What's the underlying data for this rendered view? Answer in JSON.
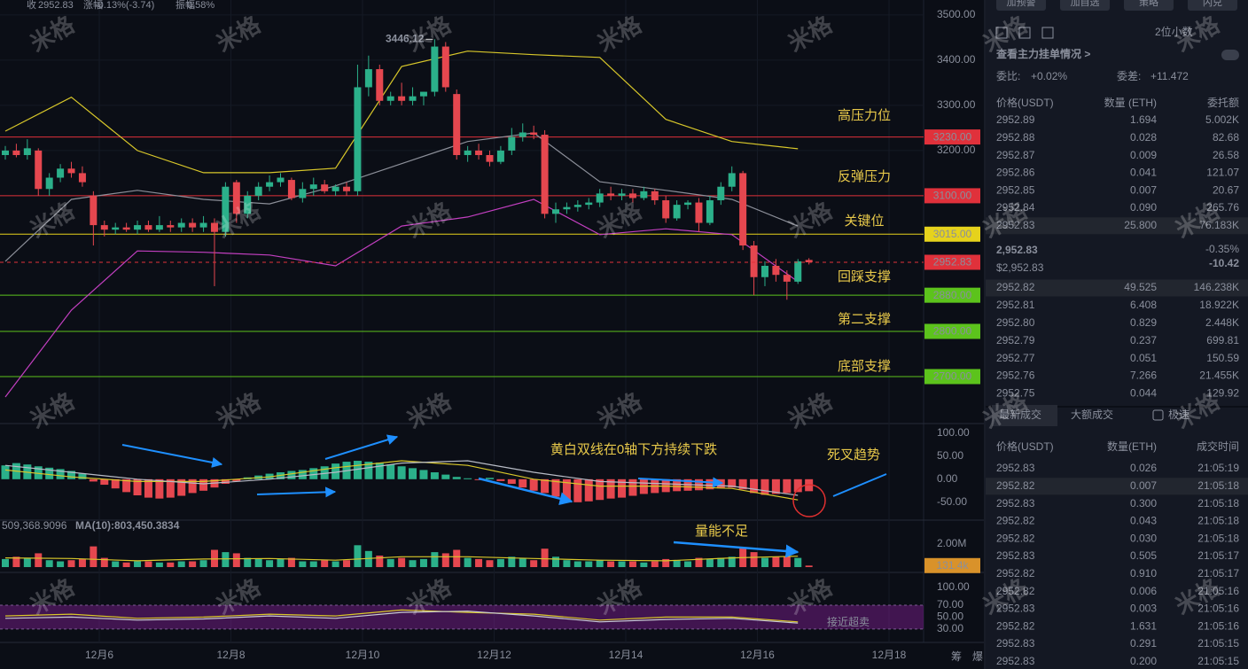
{
  "header": {
    "items": [
      {
        "label": "收",
        "value": "2952.83"
      },
      {
        "label": "涨幅",
        "value": "-0.13%(-3.74)"
      },
      {
        "label": "振幅",
        "value": "0.58%"
      }
    ],
    "buttons": [
      "加预警",
      "加自选",
      "策略",
      "闪兑"
    ]
  },
  "watermark": "米格",
  "chart": {
    "type": "candlestick",
    "colors": {
      "up": "#2bb08a",
      "down": "#e5474f"
    },
    "dates": [
      "12月6",
      "12月8",
      "12月10",
      "12月12",
      "12月14",
      "12月16",
      "12月18"
    ],
    "axis_extra": [
      "筹",
      "爆"
    ],
    "price": {
      "ylim": [
        2602,
        3533
      ],
      "yticks": [
        {
          "value": 3500,
          "label": "3500.00"
        },
        {
          "value": 3400,
          "label": "3400.00"
        },
        {
          "value": 3300,
          "label": "3300.00"
        },
        {
          "value": 3200,
          "label": "3200.00"
        }
      ],
      "candles": [
        [
          3190,
          3210,
          3180,
          3200
        ],
        [
          3200,
          3215,
          3185,
          3190
        ],
        [
          3190,
          3225,
          3180,
          3205
        ],
        [
          3200,
          3205,
          3100,
          3115
        ],
        [
          3115,
          3150,
          3100,
          3140
        ],
        [
          3140,
          3170,
          3130,
          3160
        ],
        [
          3160,
          3175,
          3140,
          3150
        ],
        [
          3150,
          3165,
          3120,
          3130
        ],
        [
          3100,
          3110,
          2990,
          3035
        ],
        [
          3035,
          3045,
          3010,
          3025
        ],
        [
          3025,
          3040,
          3015,
          3030
        ],
        [
          3030,
          3040,
          3020,
          3025
        ],
        [
          3025,
          3045,
          3015,
          3035
        ],
        [
          3035,
          3045,
          3020,
          3025
        ],
        [
          3025,
          3055,
          3020,
          3035
        ],
        [
          3035,
          3045,
          3020,
          3030
        ],
        [
          3030,
          3050,
          3020,
          3040
        ],
        [
          3040,
          3050,
          3020,
          3030
        ],
        [
          3030,
          3055,
          3020,
          3040
        ],
        [
          3040,
          3050,
          2900,
          3020
        ],
        [
          3020,
          3130,
          3010,
          3120
        ],
        [
          3130,
          3135,
          3040,
          3060
        ],
        [
          3060,
          3110,
          3050,
          3100
        ],
        [
          3100,
          3130,
          3090,
          3120
        ],
        [
          3120,
          3145,
          3110,
          3130
        ],
        [
          3130,
          3150,
          3120,
          3140
        ],
        [
          3135,
          3140,
          3090,
          3095
        ],
        [
          3095,
          3130,
          3085,
          3115
        ],
        [
          3115,
          3140,
          3100,
          3125
        ],
        [
          3125,
          3135,
          3105,
          3110
        ],
        [
          3110,
          3125,
          3100,
          3120
        ],
        [
          3120,
          3130,
          3100,
          3110
        ],
        [
          3110,
          3390,
          3100,
          3340
        ],
        [
          3340,
          3410,
          3320,
          3380
        ],
        [
          3380,
          3390,
          3300,
          3310
        ],
        [
          3310,
          3330,
          3300,
          3320
        ],
        [
          3320,
          3350,
          3300,
          3310
        ],
        [
          3310,
          3340,
          3300,
          3320
        ],
        [
          3320,
          3330,
          3300,
          3330
        ],
        [
          3330,
          3446.12,
          3320,
          3430
        ],
        [
          3430,
          3440,
          3330,
          3340
        ],
        [
          3325,
          3335,
          3180,
          3190
        ],
        [
          3190,
          3210,
          3175,
          3200
        ],
        [
          3200,
          3215,
          3180,
          3190
        ],
        [
          3190,
          3200,
          3165,
          3175
        ],
        [
          3175,
          3210,
          3170,
          3200
        ],
        [
          3200,
          3250,
          3190,
          3230
        ],
        [
          3230,
          3260,
          3220,
          3240
        ],
        [
          3240,
          3255,
          3225,
          3235
        ],
        [
          3235,
          3245,
          3050,
          3060
        ],
        [
          3060,
          3085,
          3040,
          3070
        ],
        [
          3070,
          3085,
          3060,
          3075
        ],
        [
          3075,
          3090,
          3065,
          3080
        ],
        [
          3080,
          3095,
          3070,
          3085
        ],
        [
          3085,
          3115,
          3075,
          3105
        ],
        [
          3105,
          3120,
          3090,
          3100
        ],
        [
          3100,
          3115,
          3090,
          3105
        ],
        [
          3105,
          3115,
          3085,
          3095
        ],
        [
          3095,
          3120,
          3090,
          3110
        ],
        [
          3110,
          3115,
          3080,
          3090
        ],
        [
          3090,
          3100,
          3040,
          3050
        ],
        [
          3050,
          3090,
          3045,
          3080
        ],
        [
          3080,
          3090,
          3070,
          3085
        ],
        [
          3085,
          3095,
          3020,
          3040
        ],
        [
          3040,
          3100,
          3035,
          3090
        ],
        [
          3090,
          3130,
          3080,
          3120
        ],
        [
          3120,
          3165,
          3110,
          3150
        ],
        [
          3150,
          3155,
          2980,
          2990
        ],
        [
          2990,
          3000,
          2880,
          2920
        ],
        [
          2920,
          2955,
          2900,
          2945
        ],
        [
          2945,
          2960,
          2910,
          2925
        ],
        [
          2925,
          2935,
          2870,
          2910
        ],
        [
          2910,
          2960,
          2905,
          2955
        ],
        [
          2958,
          2962,
          2948,
          2952.83
        ]
      ],
      "high_label": 3446.12,
      "bands": [
        {
          "color": "#d8c72a",
          "values": [
            3243,
            3318,
            3200,
            3151,
            3151,
            3161,
            3386,
            3420,
            3412,
            3406,
            3269,
            3220,
            3204
          ]
        },
        {
          "color": "#8c8f99",
          "values": [
            2955,
            3092,
            3112,
            3092,
            3082,
            3122,
            3171,
            3220,
            3239,
            3131,
            3112,
            3092,
            3033
          ]
        },
        {
          "color": "#c23fc0",
          "values": [
            2655,
            2847,
            2978,
            2975,
            2969,
            2945,
            3033,
            3053,
            3092,
            3014,
            3027,
            3014,
            2910
          ]
        }
      ],
      "levels": [
        {
          "value": 3230,
          "label": "3230.00",
          "color": "#e0313b",
          "text_color": "#ffffff",
          "note": "高压力位"
        },
        {
          "value": 3100,
          "label": "3100.00",
          "color": "#e0313b",
          "text_color": "#ffffff",
          "note": "反弹压力"
        },
        {
          "value": 3015,
          "label": "3015.00",
          "color": "#e6d21c",
          "text_color": "#111111",
          "note": "关键位"
        },
        {
          "value": 2880,
          "label": "2880.00",
          "color": "#5cc31c",
          "text_color": "#111111",
          "note": "回踩支撑"
        },
        {
          "value": 2800,
          "label": "2800.00",
          "color": "#5cc31c",
          "text_color": "#111111",
          "note": "第二支撑"
        },
        {
          "value": 2700,
          "label": "2700.00",
          "color": "#5cc31c",
          "text_color": "#111111",
          "note": "底部支撑"
        }
      ],
      "last": {
        "value": 2952.83,
        "label": "2952.83",
        "color": "#e0313b"
      }
    },
    "macd": {
      "ylim": [
        -85,
        117
      ],
      "yticks": [
        {
          "value": 100,
          "label": "100.00"
        },
        {
          "value": 50,
          "label": "50.00"
        },
        {
          "value": 0,
          "label": "0.00"
        },
        {
          "value": -50,
          "label": "-50.00"
        }
      ],
      "histogram": [
        30,
        35,
        32,
        28,
        25,
        22,
        18,
        12,
        -5,
        -12,
        -20,
        -28,
        -35,
        -40,
        -42,
        -40,
        -36,
        -30,
        -25,
        -18,
        -10,
        -4,
        4,
        8,
        12,
        15,
        18,
        20,
        24,
        28,
        34,
        38,
        40,
        38,
        36,
        32,
        28,
        24,
        20,
        15,
        10,
        5,
        2,
        -2,
        3,
        -4,
        -10,
        -18,
        -25,
        -30,
        -38,
        -45,
        -50,
        -48,
        -45,
        -42,
        -40,
        -36,
        -32,
        -30,
        -28,
        -26,
        -25,
        -24,
        -22,
        -20,
        -18,
        -22,
        -30,
        -34,
        -32,
        -30,
        -28,
        -26
      ],
      "lines": [
        {
          "color": "#d8c72a",
          "values": [
            20,
            5,
            -5,
            -5,
            5,
            25,
            40,
            30,
            0,
            -15,
            -15,
            -20,
            -45
          ]
        },
        {
          "color": "#b8bcc6",
          "values": [
            30,
            15,
            0,
            -10,
            0,
            15,
            35,
            40,
            15,
            -5,
            -10,
            -15,
            -35
          ]
        }
      ],
      "notes": [
        "黄白双线在0轴下方持续下跌",
        "死叉趋势"
      ]
    },
    "volume": {
      "ylim": [
        0,
        3.85
      ],
      "yticks": [
        {
          "value": 2,
          "label": "2.00M"
        }
      ],
      "values": [
        0.7,
        0.9,
        0.8,
        1.2,
        0.6,
        0.5,
        0.6,
        0.7,
        1.8,
        0.8,
        0.5,
        0.4,
        0.5,
        0.5,
        0.4,
        0.4,
        0.5,
        0.5,
        0.6,
        1.5,
        1.3,
        1.2,
        0.8,
        0.7,
        0.6,
        0.7,
        0.8,
        0.5,
        0.5,
        0.6,
        0.5,
        0.6,
        1.9,
        1.4,
        1.0,
        0.7,
        0.8,
        0.6,
        0.7,
        1.3,
        1.2,
        1.5,
        0.8,
        0.7,
        0.6,
        0.7,
        0.9,
        0.8,
        0.6,
        1.6,
        0.9,
        0.6,
        0.5,
        0.5,
        0.6,
        0.5,
        0.5,
        0.5,
        0.4,
        0.5,
        0.7,
        0.6,
        0.5,
        0.8,
        0.7,
        0.8,
        0.9,
        1.7,
        1.3,
        0.8,
        0.9,
        0.9,
        0.8,
        0.1314
      ],
      "ma": {
        "color": "#d8c72a",
        "values": [
          0.8,
          0.75,
          0.55,
          0.7,
          0.75,
          0.6,
          0.9,
          0.9,
          0.75,
          0.6,
          0.55,
          0.8,
          0.95
        ]
      },
      "legend": [
        "509,368.9096",
        "MA(10):803,450.3834"
      ],
      "last": {
        "value": 0.1314,
        "label": "131.4k"
      },
      "note": "量能不足"
    },
    "rsi": {
      "ylim": [
        15,
        119
      ],
      "yticks": [
        {
          "value": 100,
          "label": "100.00"
        },
        {
          "value": 70,
          "label": "70.00"
        },
        {
          "value": 50,
          "label": "50.00"
        },
        {
          "value": 30,
          "label": "30.00"
        }
      ],
      "band": [
        30,
        70
      ],
      "lines": [
        {
          "color": "#d8c72a",
          "values": [
            52,
            55,
            48,
            50,
            55,
            52,
            62,
            58,
            55,
            45,
            50,
            50,
            42
          ]
        },
        {
          "color": "#c9ccd4",
          "values": [
            48,
            50,
            45,
            47,
            52,
            48,
            58,
            60,
            52,
            42,
            46,
            48,
            40
          ]
        }
      ],
      "note": "接近超卖"
    }
  },
  "order_book": {
    "precision": "2位小数",
    "link": "查看主力挂单情况 >",
    "ratio": {
      "label": "委比:",
      "value": "+0.02%"
    },
    "diff": {
      "label": "委差:",
      "value": "+11.472"
    },
    "headers": [
      "价格(USDT)",
      "数量 (ETH)",
      "委托额"
    ],
    "asks": [
      [
        "2952.89",
        "1.694",
        "5.002K"
      ],
      [
        "2952.88",
        "0.028",
        "82.68"
      ],
      [
        "2952.87",
        "0.009",
        "26.58"
      ],
      [
        "2952.86",
        "0.041",
        "121.07"
      ],
      [
        "2952.85",
        "0.007",
        "20.67"
      ],
      [
        "2952.84",
        "0.090",
        "265.76"
      ],
      [
        "2952.83",
        "25.800",
        "76.183K"
      ]
    ],
    "price": "2,952.83",
    "price_usd": "$2,952.83",
    "change_pct": "-0.35%",
    "change": "-10.42",
    "bids": [
      [
        "2952.82",
        "49.525",
        "146.238K"
      ],
      [
        "2952.81",
        "6.408",
        "18.922K"
      ],
      [
        "2952.80",
        "0.829",
        "2.448K"
      ],
      [
        "2952.79",
        "0.237",
        "699.81"
      ],
      [
        "2952.77",
        "0.051",
        "150.59"
      ],
      [
        "2952.76",
        "7.266",
        "21.455K"
      ],
      [
        "2952.75",
        "0.044",
        "129.92"
      ]
    ]
  },
  "trades": {
    "tabs": [
      "最新成交",
      "大额成交",
      "极速"
    ],
    "headers": [
      "价格(USDT)",
      "数量(ETH)",
      "成交时间"
    ],
    "rows": [
      [
        "2952.83",
        "0.026",
        "21:05:19"
      ],
      [
        "2952.82",
        "0.007",
        "21:05:18"
      ],
      [
        "2952.83",
        "0.300",
        "21:05:18"
      ],
      [
        "2952.82",
        "0.043",
        "21:05:18"
      ],
      [
        "2952.82",
        "0.030",
        "21:05:18"
      ],
      [
        "2952.83",
        "0.505",
        "21:05:17"
      ],
      [
        "2952.82",
        "0.910",
        "21:05:17"
      ],
      [
        "2952.82",
        "0.006",
        "21:05:16"
      ],
      [
        "2952.83",
        "0.003",
        "21:05:16"
      ],
      [
        "2952.82",
        "1.631",
        "21:05:16"
      ],
      [
        "2952.83",
        "0.291",
        "21:05:15"
      ],
      [
        "2952.83",
        "0.200",
        "21:05:15"
      ]
    ],
    "sides": [
      "buy",
      "sell",
      "buy",
      "sell",
      "sell",
      "buy",
      "sell",
      "sell",
      "buy",
      "sell",
      "buy",
      "buy"
    ]
  }
}
